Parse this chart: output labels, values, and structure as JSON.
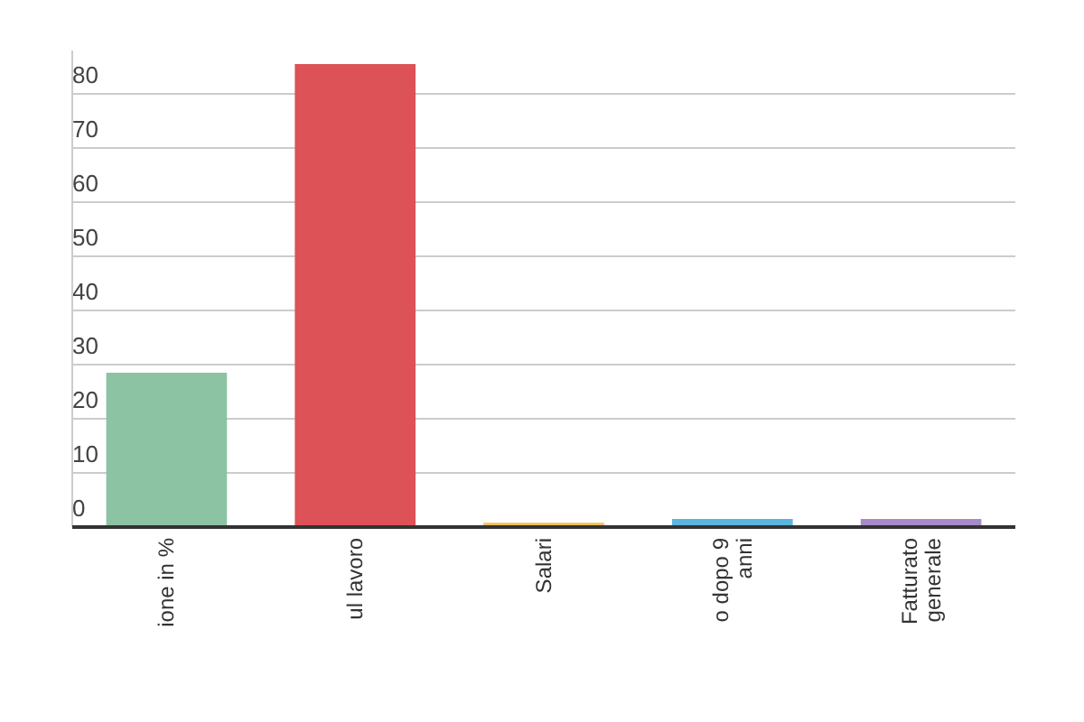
{
  "chart_data": {
    "type": "bar",
    "categories": [
      "ione in %",
      "ul lavoro",
      "Salari",
      "o dopo 9\nanni",
      "Fatturato\ngenerale"
    ],
    "values": [
      28.5,
      85.5,
      0.8,
      1.5,
      1.5
    ],
    "colors": [
      "#8bc3a3",
      "#dc5257",
      "#f0c05a",
      "#5bb5e0",
      "#a78bc9"
    ],
    "ylim": [
      0,
      88
    ],
    "yticks": [
      0,
      10,
      20,
      30,
      40,
      50,
      60,
      70,
      80
    ],
    "grid": "y"
  }
}
